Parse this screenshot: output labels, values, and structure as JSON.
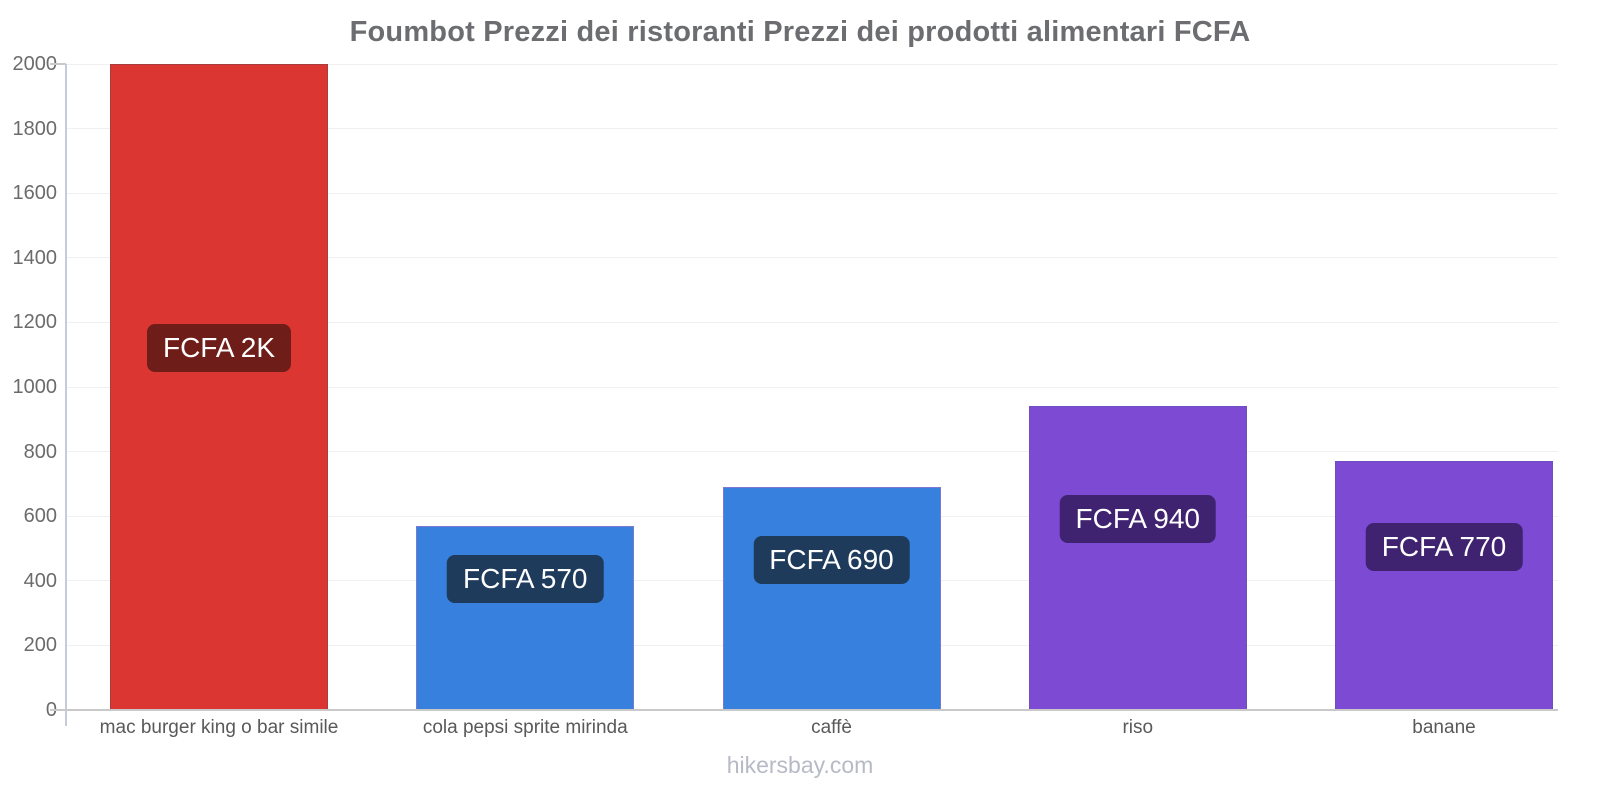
{
  "page": {
    "footer": "hikersbay.com"
  },
  "chart_data": {
    "type": "bar",
    "title": "Foumbot Prezzi dei ristoranti Prezzi dei prodotti alimentari FCFA",
    "categories": [
      "mac burger king o bar simile",
      "cola pepsi sprite mirinda",
      "caffè",
      "riso",
      "banane"
    ],
    "values": [
      2000,
      570,
      690,
      940,
      770
    ],
    "value_labels": [
      "FCFA 2K",
      "FCFA 570",
      "FCFA 690",
      "FCFA 940",
      "FCFA 770"
    ],
    "currency": "FCFA",
    "xlabel": "",
    "ylabel": "",
    "ylim": [
      0,
      2000
    ],
    "yticks": [
      0,
      200,
      400,
      600,
      800,
      1000,
      1200,
      1400,
      1600,
      1800,
      2000
    ],
    "grid": true,
    "legend": false,
    "bar_fill_colors": [
      "#dc3632",
      "#3880dd",
      "#3880dd",
      "#7d4bd3",
      "#7d4bd3"
    ],
    "bar_border_colors": [
      "#a43f3b",
      "#7a79cf",
      "#7a79cf",
      "#6e4fc2",
      "#6e4fc2"
    ],
    "value_label_bg_colors": [
      "#6f1d18",
      "#1e3b5c",
      "#1e3b5c",
      "#3f2370",
      "#3f2370"
    ],
    "value_label_text_color": "#ffffff"
  },
  "theme": {
    "title_color": "#6c6d70",
    "y_tick_color": "#6b6b6b",
    "category_color": "#59595b",
    "footer_color": "#b7bac6",
    "y_axis_line_color": "#c7cadb",
    "baseline_color": "#c9c9c9",
    "gridline_color": "#f0f0f3",
    "background": "#ffffff"
  }
}
